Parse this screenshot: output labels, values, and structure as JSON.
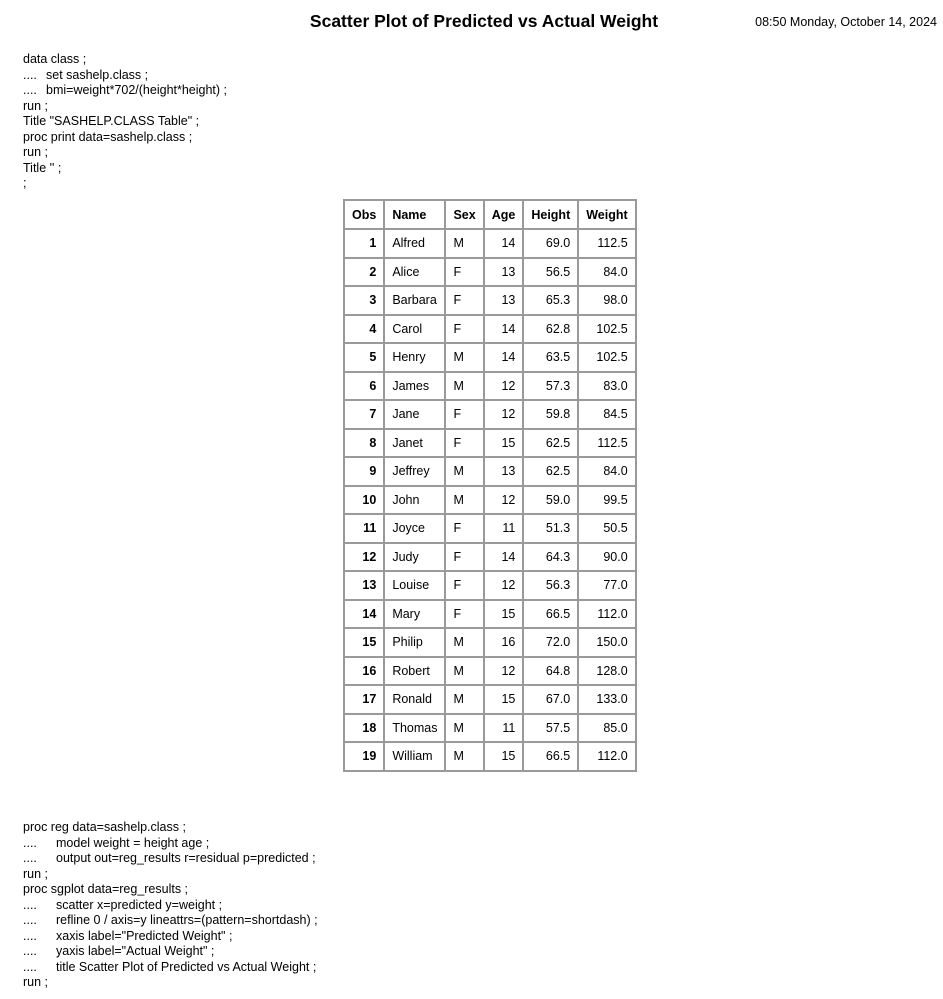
{
  "header": {
    "title": "Scatter Plot of Predicted vs Actual Weight",
    "datetime": "08:50 Monday, October 14, 2024"
  },
  "code_top": [
    {
      "prefix": "",
      "text": "data class ;"
    },
    {
      "prefix": "....",
      "text": "set sashelp.class ;"
    },
    {
      "prefix": "....",
      "text": "bmi=weight*702/(height*height) ;"
    },
    {
      "prefix": "",
      "text": "run ;"
    },
    {
      "prefix": "",
      "text": "Title \"SASHELP.CLASS Table\" ;"
    },
    {
      "prefix": "",
      "text": "proc print data=sashelp.class ;"
    },
    {
      "prefix": "",
      "text": "run ;"
    },
    {
      "prefix": "",
      "text": "Title '' ;"
    },
    {
      "prefix": "",
      "text": ";"
    }
  ],
  "table": {
    "columns": [
      "Obs",
      "Name",
      "Sex",
      "Age",
      "Height",
      "Weight"
    ],
    "rows": [
      [
        "1",
        "Alfred",
        "M",
        "14",
        "69.0",
        "112.5"
      ],
      [
        "2",
        "Alice",
        "F",
        "13",
        "56.5",
        "84.0"
      ],
      [
        "3",
        "Barbara",
        "F",
        "13",
        "65.3",
        "98.0"
      ],
      [
        "4",
        "Carol",
        "F",
        "14",
        "62.8",
        "102.5"
      ],
      [
        "5",
        "Henry",
        "M",
        "14",
        "63.5",
        "102.5"
      ],
      [
        "6",
        "James",
        "M",
        "12",
        "57.3",
        "83.0"
      ],
      [
        "7",
        "Jane",
        "F",
        "12",
        "59.8",
        "84.5"
      ],
      [
        "8",
        "Janet",
        "F",
        "15",
        "62.5",
        "112.5"
      ],
      [
        "9",
        "Jeffrey",
        "M",
        "13",
        "62.5",
        "84.0"
      ],
      [
        "10",
        "John",
        "M",
        "12",
        "59.0",
        "99.5"
      ],
      [
        "11",
        "Joyce",
        "F",
        "11",
        "51.3",
        "50.5"
      ],
      [
        "12",
        "Judy",
        "F",
        "14",
        "64.3",
        "90.0"
      ],
      [
        "13",
        "Louise",
        "F",
        "12",
        "56.3",
        "77.0"
      ],
      [
        "14",
        "Mary",
        "F",
        "15",
        "66.5",
        "112.0"
      ],
      [
        "15",
        "Philip",
        "M",
        "16",
        "72.0",
        "150.0"
      ],
      [
        "16",
        "Robert",
        "M",
        "12",
        "64.8",
        "128.0"
      ],
      [
        "17",
        "Ronald",
        "M",
        "15",
        "67.0",
        "133.0"
      ],
      [
        "18",
        "Thomas",
        "M",
        "11",
        "57.5",
        "85.0"
      ],
      [
        "19",
        "William",
        "M",
        "15",
        "66.5",
        "112.0"
      ]
    ]
  },
  "code_bottom": [
    {
      "prefix": "",
      "text": "proc reg data=sashelp.class ;"
    },
    {
      "prefix": "....",
      "text": "model weight = height age ;"
    },
    {
      "prefix": "....",
      "text": "output out=reg_results r=residual p=predicted ;"
    },
    {
      "prefix": "",
      "text": "run ;"
    },
    {
      "prefix": "",
      "text": "proc sgplot data=reg_results ;"
    },
    {
      "prefix": "....",
      "text": "scatter x=predicted y=weight ;"
    },
    {
      "prefix": "....",
      "text": "refline 0 / axis=y lineattrs=(pattern=shortdash) ;"
    },
    {
      "prefix": "....",
      "text": "xaxis label=\"Predicted Weight\" ;"
    },
    {
      "prefix": "....",
      "text": "yaxis label=\"Actual Weight\" ;"
    },
    {
      "prefix": "....",
      "text": "title Scatter Plot of Predicted vs Actual Weight ;"
    },
    {
      "prefix": "",
      "text": "run ;"
    }
  ]
}
